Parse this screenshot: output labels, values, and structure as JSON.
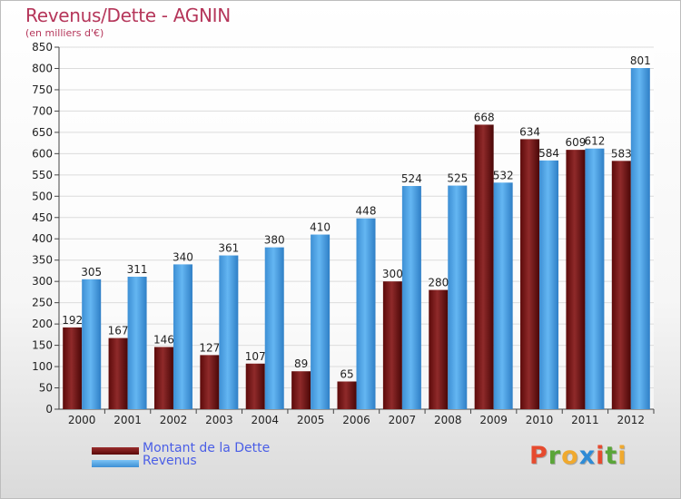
{
  "title": "Revenus/Dette - AGNIN",
  "subtitle": "(en milliers d'€)",
  "logo": {
    "letters": [
      "P",
      "r",
      "o",
      "x",
      "i",
      "t",
      "i"
    ],
    "colors": [
      "#e64b2f",
      "#5aa538",
      "#f0a92e",
      "#2e8bd6",
      "#e64b2f",
      "#5aa538",
      "#f0a92e"
    ]
  },
  "chart_data": {
    "type": "bar",
    "categories": [
      "2000",
      "2001",
      "2002",
      "2003",
      "2004",
      "2005",
      "2006",
      "2007",
      "2008",
      "2009",
      "2010",
      "2011",
      "2012"
    ],
    "series": [
      {
        "name": "Montant de la Dette",
        "color": "#7a1515",
        "values": [
          192,
          167,
          146,
          127,
          107,
          89,
          65,
          300,
          280,
          668,
          634,
          609,
          583
        ]
      },
      {
        "name": "Revenus",
        "color": "#4fa6e8",
        "values": [
          305,
          311,
          340,
          361,
          380,
          410,
          448,
          524,
          525,
          532,
          584,
          612,
          801
        ]
      }
    ],
    "ylim": [
      0,
      850
    ],
    "ytick_step": 50,
    "grid": true,
    "legend_position": "bottom-left"
  }
}
